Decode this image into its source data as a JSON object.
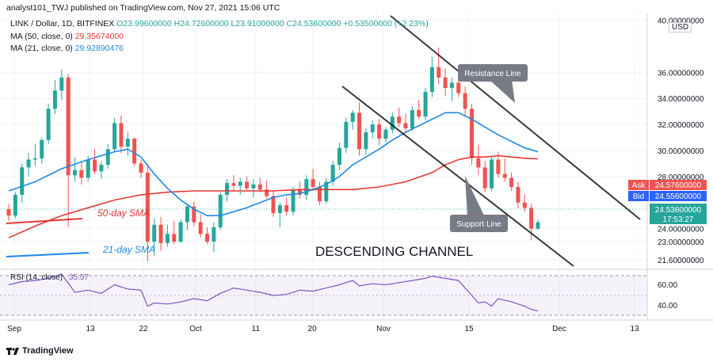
{
  "header": {
    "publisher_line": "analyst101_TWJ published on TradingView.com, Nov 27, 2021 15:06 UTC",
    "symbol": "LINK / Dollar, 1D, BITFINEX",
    "ohlc": {
      "open": "O23.99600000",
      "high": "H24.72600000",
      "low": "L23.91000000",
      "close": "C24.53600000",
      "change": "+0.53500000 (+2.23%)"
    },
    "ma50": {
      "label": "MA (50, close, 0)",
      "value": "29.35674000"
    },
    "ma21": {
      "label": "MA (21, close, 0)",
      "value": "29.92890476"
    },
    "currency": "USD"
  },
  "price_axis": {
    "ticks": [
      "40.00000000",
      "36.00000000",
      "34.00000000",
      "32.00000000",
      "30.00000000",
      "28.00000000",
      "24.00000000",
      "23.00000000",
      "21.60000000"
    ],
    "ask": {
      "label": "Ask",
      "value": "24.57600000"
    },
    "bid": {
      "label": "Bid",
      "value": "24.55600000"
    },
    "last": {
      "value": "24.53600000",
      "countdown": "17:53:27"
    }
  },
  "rsi_panel": {
    "label": "RSI (14, close)",
    "value": "35.57",
    "ticks": [
      "60.00",
      "40.00"
    ]
  },
  "time_axis": [
    "Sep",
    "13",
    "22",
    "Oct",
    "11",
    "20",
    "Nov",
    "15",
    "Dec",
    "13"
  ],
  "annotations": {
    "resistance": "Resistance Line",
    "support": "Support Line",
    "channel": "DESCENDING CHANNEL",
    "sma50": "50-day SMA",
    "sma21": "21-day SMA"
  },
  "footer": {
    "brand": "TradingView"
  },
  "colors": {
    "up": "#26a69a",
    "down": "#ef5350",
    "ma50": "#e53935",
    "ma21": "#1e88e5",
    "rsi": "#7e57c2"
  },
  "chart_data": {
    "type": "candlestick",
    "interval": "1D",
    "ylim": [
      21.0,
      40.7
    ],
    "y_ticks": [
      40,
      36,
      34,
      32,
      30,
      28,
      24,
      23,
      21.6
    ],
    "ohlc": [
      [
        25.5,
        25.9,
        24.6,
        25.0
      ],
      [
        25.0,
        26.8,
        24.8,
        26.6
      ],
      [
        26.6,
        29.0,
        26.0,
        28.7
      ],
      [
        28.7,
        29.8,
        28.0,
        29.3
      ],
      [
        29.3,
        30.5,
        28.8,
        29.4
      ],
      [
        29.4,
        31.0,
        29.0,
        30.8
      ],
      [
        30.8,
        33.6,
        30.5,
        33.2
      ],
      [
        33.2,
        35.4,
        32.8,
        34.6
      ],
      [
        34.6,
        36.2,
        33.9,
        35.6
      ],
      [
        35.6,
        35.9,
        24.1,
        28.1
      ],
      [
        28.1,
        29.5,
        27.6,
        28.5
      ],
      [
        28.5,
        29.1,
        27.4,
        27.9
      ],
      [
        27.9,
        29.6,
        27.6,
        29.3
      ],
      [
        29.3,
        30.1,
        28.2,
        28.4
      ],
      [
        28.4,
        29.2,
        27.8,
        28.9
      ],
      [
        28.9,
        30.5,
        28.6,
        30.1
      ],
      [
        30.1,
        32.5,
        29.9,
        32.1
      ],
      [
        32.1,
        32.7,
        29.8,
        30.3
      ],
      [
        30.3,
        31.4,
        29.6,
        30.9
      ],
      [
        30.9,
        31.0,
        28.8,
        29.0
      ],
      [
        29.0,
        29.3,
        27.9,
        28.3
      ],
      [
        28.3,
        29.0,
        21.5,
        23.0
      ],
      [
        23.0,
        24.8,
        21.9,
        24.3
      ],
      [
        24.3,
        24.9,
        22.3,
        22.9
      ],
      [
        22.9,
        24.3,
        22.6,
        23.6
      ],
      [
        23.6,
        24.6,
        22.8,
        23.0
      ],
      [
        23.0,
        24.7,
        22.9,
        24.5
      ],
      [
        24.5,
        25.9,
        23.9,
        25.7
      ],
      [
        25.7,
        26.1,
        24.2,
        24.5
      ],
      [
        24.5,
        25.1,
        23.3,
        23.6
      ],
      [
        23.6,
        24.1,
        22.8,
        23.0
      ],
      [
        23.0,
        24.5,
        22.2,
        24.1
      ],
      [
        24.1,
        26.8,
        23.9,
        26.6
      ],
      [
        26.6,
        27.8,
        26.1,
        27.5
      ],
      [
        27.5,
        28.1,
        26.9,
        27.3
      ],
      [
        27.3,
        27.9,
        26.6,
        27.6
      ],
      [
        27.6,
        28.0,
        26.9,
        27.1
      ],
      [
        27.1,
        27.8,
        26.4,
        27.4
      ],
      [
        27.4,
        27.9,
        26.8,
        27.0
      ],
      [
        27.0,
        27.7,
        26.3,
        26.5
      ],
      [
        26.5,
        26.9,
        24.9,
        25.2
      ],
      [
        25.2,
        26.0,
        24.1,
        25.8
      ],
      [
        25.8,
        26.4,
        25.0,
        25.3
      ],
      [
        25.3,
        27.2,
        25.0,
        27.0
      ],
      [
        27.0,
        27.6,
        26.3,
        26.6
      ],
      [
        26.6,
        28.1,
        26.2,
        27.8
      ],
      [
        27.8,
        28.6,
        26.9,
        27.2
      ],
      [
        27.2,
        27.6,
        25.8,
        26.1
      ],
      [
        26.1,
        27.9,
        25.9,
        27.6
      ],
      [
        27.6,
        29.2,
        27.3,
        28.9
      ],
      [
        28.9,
        30.6,
        28.5,
        30.2
      ],
      [
        30.2,
        32.5,
        29.8,
        32.2
      ],
      [
        32.2,
        33.1,
        31.6,
        32.9
      ],
      [
        32.9,
        33.7,
        29.6,
        30.1
      ],
      [
        30.1,
        31.7,
        29.7,
        31.4
      ],
      [
        31.4,
        32.3,
        30.9,
        32.0
      ],
      [
        32.0,
        32.4,
        30.4,
        30.9
      ],
      [
        30.9,
        31.8,
        30.6,
        31.6
      ],
      [
        31.6,
        32.9,
        31.3,
        32.6
      ],
      [
        32.6,
        33.3,
        31.8,
        32.1
      ],
      [
        32.1,
        32.8,
        31.4,
        31.7
      ],
      [
        31.7,
        33.4,
        31.5,
        33.1
      ],
      [
        33.1,
        33.9,
        32.4,
        32.6
      ],
      [
        32.6,
        34.8,
        32.3,
        34.5
      ],
      [
        34.5,
        37.2,
        34.1,
        36.4
      ],
      [
        36.4,
        37.9,
        35.1,
        35.6
      ],
      [
        35.6,
        36.3,
        34.2,
        34.8
      ],
      [
        34.8,
        35.6,
        33.8,
        35.2
      ],
      [
        35.2,
        35.8,
        34.1,
        34.4
      ],
      [
        34.4,
        34.9,
        32.6,
        33.2
      ],
      [
        33.2,
        33.6,
        28.9,
        29.4
      ],
      [
        29.4,
        30.4,
        28.1,
        28.7
      ],
      [
        28.7,
        29.2,
        26.8,
        27.1
      ],
      [
        27.1,
        29.6,
        26.9,
        29.3
      ],
      [
        29.3,
        29.9,
        27.9,
        28.2
      ],
      [
        28.2,
        29.4,
        27.6,
        27.9
      ],
      [
        27.9,
        28.3,
        26.9,
        27.2
      ],
      [
        27.2,
        27.6,
        25.6,
        26.0
      ],
      [
        26.0,
        26.6,
        25.3,
        25.6
      ],
      [
        25.6,
        25.9,
        23.1,
        24.0
      ],
      [
        24.0,
        24.7,
        23.9,
        24.5
      ]
    ],
    "ma21": [
      [
        0,
        26.9
      ],
      [
        4,
        27.6
      ],
      [
        8,
        28.6
      ],
      [
        12,
        29.3
      ],
      [
        16,
        29.9
      ],
      [
        18,
        30.1
      ],
      [
        20,
        29.5
      ],
      [
        22,
        28.2
      ],
      [
        24,
        27.1
      ],
      [
        26,
        26.2
      ],
      [
        28,
        25.5
      ],
      [
        30,
        25.0
      ],
      [
        32,
        25.0
      ],
      [
        34,
        25.3
      ],
      [
        36,
        25.6
      ],
      [
        38,
        26.0
      ],
      [
        40,
        26.4
      ],
      [
        42,
        26.6
      ],
      [
        44,
        26.7
      ],
      [
        46,
        27.0
      ],
      [
        48,
        27.4
      ],
      [
        50,
        28.0
      ],
      [
        52,
        28.9
      ],
      [
        54,
        29.5
      ],
      [
        56,
        30.1
      ],
      [
        58,
        30.8
      ],
      [
        60,
        31.4
      ],
      [
        62,
        31.9
      ],
      [
        64,
        32.4
      ],
      [
        66,
        32.9
      ],
      [
        68,
        32.9
      ],
      [
        70,
        32.4
      ],
      [
        72,
        31.8
      ],
      [
        74,
        31.2
      ],
      [
        76,
        30.7
      ],
      [
        78,
        30.2
      ],
      [
        80,
        29.9
      ]
    ],
    "ma50": [
      [
        0,
        23.3
      ],
      [
        4,
        24.2
      ],
      [
        8,
        25.0
      ],
      [
        12,
        25.6
      ],
      [
        16,
        26.2
      ],
      [
        20,
        26.6
      ],
      [
        24,
        26.8
      ],
      [
        28,
        26.9
      ],
      [
        32,
        26.9
      ],
      [
        36,
        26.9
      ],
      [
        40,
        26.9
      ],
      [
        44,
        27.0
      ],
      [
        48,
        27.0
      ],
      [
        52,
        27.0
      ],
      [
        56,
        27.2
      ],
      [
        60,
        27.6
      ],
      [
        64,
        28.3
      ],
      [
        66,
        28.9
      ],
      [
        68,
        29.3
      ],
      [
        70,
        29.5
      ],
      [
        72,
        29.5
      ],
      [
        74,
        29.6
      ],
      [
        76,
        29.5
      ],
      [
        78,
        29.4
      ],
      [
        80,
        29.36
      ]
    ],
    "rsi": [
      [
        0,
        60
      ],
      [
        2,
        63
      ],
      [
        4,
        64
      ],
      [
        6,
        66
      ],
      [
        8,
        70
      ],
      [
        10,
        53
      ],
      [
        12,
        55
      ],
      [
        14,
        52
      ],
      [
        16,
        60
      ],
      [
        18,
        56
      ],
      [
        20,
        55
      ],
      [
        21,
        40
      ],
      [
        22,
        43
      ],
      [
        24,
        42
      ],
      [
        26,
        44
      ],
      [
        28,
        47
      ],
      [
        30,
        45
      ],
      [
        32,
        52
      ],
      [
        34,
        57
      ],
      [
        36,
        55
      ],
      [
        38,
        53
      ],
      [
        40,
        50
      ],
      [
        42,
        51
      ],
      [
        44,
        55
      ],
      [
        46,
        54
      ],
      [
        48,
        57
      ],
      [
        50,
        60
      ],
      [
        52,
        64
      ],
      [
        53,
        59
      ],
      [
        55,
        61
      ],
      [
        57,
        60
      ],
      [
        59,
        62
      ],
      [
        61,
        64
      ],
      [
        63,
        66
      ],
      [
        64,
        68
      ],
      [
        66,
        66
      ],
      [
        68,
        64
      ],
      [
        70,
        50
      ],
      [
        71,
        43
      ],
      [
        72,
        44
      ],
      [
        73,
        40
      ],
      [
        74,
        47
      ],
      [
        76,
        44
      ],
      [
        78,
        40
      ],
      [
        79,
        37
      ],
      [
        80,
        35.57
      ]
    ],
    "rsi_ylim": [
      27,
      73
    ]
  }
}
